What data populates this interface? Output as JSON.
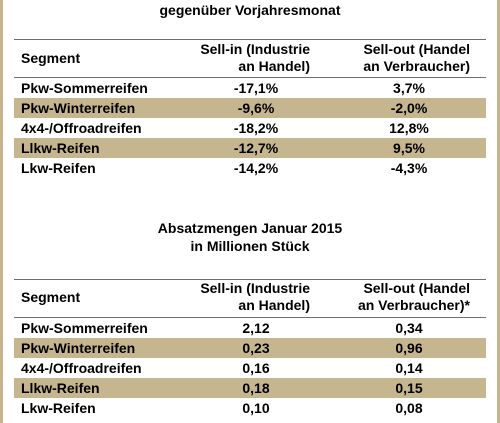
{
  "table1": {
    "heading": "gegenüber Vorjahresmonat",
    "columns": {
      "segment": "Segment",
      "sellin_line1": "Sell-in (Industrie",
      "sellin_line2": "an Handel)",
      "sellout_line1": "Sell-out (Handel",
      "sellout_line2": "an Verbraucher)"
    },
    "rows": [
      {
        "segment": "Pkw-Sommerreifen",
        "sellin": "-17,1%",
        "sellout": "3,7%",
        "shaded": false
      },
      {
        "segment": "Pkw-Winterreifen",
        "sellin": "-9,6%",
        "sellout": "-2,0%",
        "shaded": true
      },
      {
        "segment": "4x4-/Offroadreifen",
        "sellin": "-18,2%",
        "sellout": "12,8%",
        "shaded": false
      },
      {
        "segment": "Llkw-Reifen",
        "sellin": "-12,7%",
        "sellout": "9,5%",
        "shaded": true
      },
      {
        "segment": "Lkw-Reifen",
        "sellin": "-14,2%",
        "sellout": "-4,3%",
        "shaded": false
      }
    ]
  },
  "table2": {
    "heading_line1": "Absatzmengen Januar 2015",
    "heading_line2": "in Millionen Stück",
    "columns": {
      "segment": "Segment",
      "sellin_line1": "Sell-in (Industrie",
      "sellin_line2": "an Handel)",
      "sellout_line1": "Sell-out (Handel",
      "sellout_line2": "an Verbraucher)*"
    },
    "rows": [
      {
        "segment": "Pkw-Sommerreifen",
        "sellin": "2,12",
        "sellout": "0,34",
        "shaded": false
      },
      {
        "segment": "Pkw-Winterreifen",
        "sellin": "0,23",
        "sellout": "0,96",
        "shaded": true
      },
      {
        "segment": "4x4-/Offroadreifen",
        "sellin": "0,16",
        "sellout": "0,14",
        "shaded": false
      },
      {
        "segment": "Llkw-Reifen",
        "sellin": "0,18",
        "sellout": "0,15",
        "shaded": true
      },
      {
        "segment": "Lkw-Reifen",
        "sellin": "0,10",
        "sellout": "0,08",
        "shaded": false
      }
    ]
  },
  "colors": {
    "row_shade": "#c6b68f",
    "border": "#c7b48a",
    "rule": "#6f6f6f"
  }
}
